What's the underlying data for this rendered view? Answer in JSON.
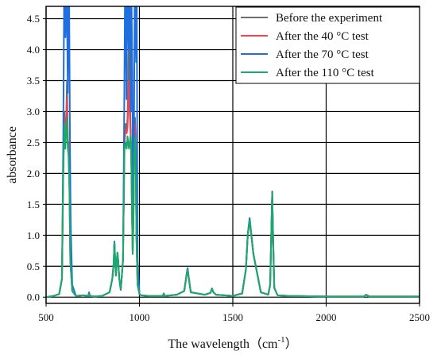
{
  "chart_data": {
    "type": "line",
    "xlabel": "The wavelength（cm",
    "xlabel_sup": "-1",
    "xlabel_close": "）",
    "ylabel": "absorbance",
    "xlim": [
      500,
      2500
    ],
    "ylim": [
      -0.1,
      4.7
    ],
    "xticks": [
      500,
      1000,
      1500,
      2000,
      2500
    ],
    "yticks": [
      0.0,
      0.5,
      1.0,
      1.5,
      2.0,
      2.5,
      3.0,
      3.5,
      4.0,
      4.5
    ],
    "xtick_labels": [
      "500",
      "1000",
      "1500",
      "2000",
      "2500"
    ],
    "ytick_labels": [
      "0.0",
      "0.5",
      "1.0",
      "1.5",
      "2.0",
      "2.5",
      "3.0",
      "3.5",
      "4.0",
      "4.5"
    ],
    "grid": true,
    "legend_position": "top-right",
    "series": [
      {
        "name": "Before the experiment",
        "color": "#6e6e6e",
        "x": [
          500,
          540,
          570,
          585,
          592,
          598,
          603,
          608,
          612,
          616,
          620,
          625,
          630,
          640,
          660,
          700,
          725,
          730,
          735,
          760,
          800,
          840,
          855,
          862,
          866,
          870,
          874,
          878,
          882,
          886,
          892,
          900,
          912,
          920,
          926,
          932,
          936,
          940,
          944,
          948,
          952,
          956,
          960,
          964,
          968,
          972,
          976,
          980,
          984,
          990,
          1000,
          1010,
          1050,
          1100,
          1125,
          1130,
          1135,
          1200,
          1240,
          1252,
          1258,
          1264,
          1275,
          1350,
          1380,
          1388,
          1396,
          1410,
          1500,
          1550,
          1570,
          1580,
          1590,
          1610,
          1650,
          1690,
          1700,
          1706,
          1711,
          1716,
          1722,
          1740,
          1800,
          2000,
          2200,
          2215,
          2230,
          2300,
          2500
        ],
        "y": [
          0.0,
          0.02,
          0.05,
          0.3,
          2.0,
          3.0,
          2.6,
          2.9,
          3.5,
          2.6,
          2.4,
          1.8,
          0.6,
          0.1,
          0.02,
          0.03,
          0.02,
          0.06,
          0.02,
          0.01,
          0.02,
          0.08,
          0.3,
          0.55,
          0.9,
          0.6,
          0.35,
          0.55,
          0.72,
          0.6,
          0.3,
          0.12,
          0.6,
          2.5,
          2.8,
          2.7,
          2.9,
          3.6,
          4.3,
          3.5,
          2.8,
          2.3,
          1.4,
          0.7,
          1.3,
          2.4,
          2.9,
          2.4,
          1.0,
          0.2,
          0.05,
          0.03,
          0.02,
          0.02,
          0.02,
          0.06,
          0.02,
          0.04,
          0.1,
          0.35,
          0.47,
          0.32,
          0.08,
          0.04,
          0.07,
          0.14,
          0.08,
          0.04,
          0.02,
          0.06,
          0.45,
          1.0,
          1.27,
          0.7,
          0.08,
          0.04,
          0.2,
          1.0,
          1.7,
          0.9,
          0.15,
          0.03,
          0.02,
          0.01,
          0.01,
          0.04,
          0.01,
          0.01,
          0.01
        ]
      },
      {
        "name": "After the 40 °C test",
        "color": "#f0444f",
        "x": [
          500,
          540,
          570,
          585,
          592,
          598,
          603,
          608,
          612,
          616,
          620,
          625,
          630,
          640,
          660,
          700,
          725,
          730,
          735,
          760,
          800,
          840,
          855,
          862,
          866,
          870,
          874,
          878,
          882,
          886,
          892,
          900,
          912,
          920,
          926,
          932,
          936,
          940,
          944,
          948,
          952,
          956,
          960,
          964,
          968,
          972,
          976,
          980,
          984,
          990,
          1000,
          1010,
          1050,
          1100,
          1125,
          1130,
          1135,
          1200,
          1240,
          1252,
          1258,
          1264,
          1275,
          1350,
          1380,
          1388,
          1396,
          1410,
          1500,
          1550,
          1570,
          1580,
          1590,
          1610,
          1650,
          1690,
          1700,
          1706,
          1711,
          1716,
          1722,
          1740,
          1800,
          2000,
          2200,
          2215,
          2230,
          2300,
          2500
        ],
        "y": [
          0.0,
          0.02,
          0.05,
          0.3,
          2.0,
          2.9,
          2.5,
          2.8,
          3.2,
          2.6,
          2.4,
          1.8,
          0.6,
          0.1,
          0.02,
          0.03,
          0.02,
          0.06,
          0.02,
          0.01,
          0.02,
          0.08,
          0.3,
          0.55,
          0.9,
          0.6,
          0.35,
          0.55,
          0.72,
          0.6,
          0.3,
          0.12,
          0.6,
          2.5,
          2.7,
          2.65,
          2.75,
          3.1,
          3.5,
          3.0,
          2.7,
          2.3,
          1.4,
          0.7,
          1.3,
          2.4,
          2.8,
          2.4,
          1.0,
          0.2,
          0.05,
          0.03,
          0.02,
          0.02,
          0.02,
          0.06,
          0.02,
          0.04,
          0.1,
          0.35,
          0.46,
          0.32,
          0.08,
          0.04,
          0.07,
          0.13,
          0.08,
          0.04,
          0.02,
          0.06,
          0.45,
          1.0,
          1.25,
          0.7,
          0.08,
          0.04,
          0.2,
          1.0,
          1.69,
          0.9,
          0.15,
          0.03,
          0.02,
          0.01,
          0.01,
          0.04,
          0.01,
          0.01,
          0.01
        ]
      },
      {
        "name": "After the 70 °C test",
        "color": "#1f6fe0",
        "x": [
          500,
          540,
          570,
          585,
          592,
          596,
          600,
          604,
          608,
          612,
          616,
          620,
          624,
          628,
          632,
          640,
          660,
          700,
          725,
          730,
          735,
          760,
          800,
          840,
          855,
          862,
          866,
          870,
          874,
          878,
          882,
          886,
          892,
          900,
          912,
          918,
          922,
          926,
          930,
          934,
          938,
          942,
          946,
          950,
          954,
          958,
          962,
          966,
          970,
          974,
          978,
          982,
          986,
          990,
          1000,
          1010,
          1050,
          1100,
          1125,
          1130,
          1135,
          1200,
          1240,
          1252,
          1258,
          1264,
          1275,
          1350,
          1380,
          1388,
          1396,
          1410,
          1500,
          1550,
          1570,
          1580,
          1590,
          1610,
          1650,
          1690,
          1700,
          1706,
          1711,
          1716,
          1722,
          1740,
          1800,
          2000,
          2200,
          2215,
          2230,
          2300,
          2500
        ],
        "y": [
          0.0,
          0.02,
          0.05,
          0.3,
          2.5,
          4.7,
          4.7,
          4.2,
          4.7,
          4.7,
          3.3,
          4.7,
          4.7,
          2.4,
          1.2,
          0.2,
          0.02,
          0.03,
          0.02,
          0.08,
          0.02,
          0.01,
          0.02,
          0.08,
          0.3,
          0.55,
          0.9,
          0.6,
          0.35,
          0.55,
          0.72,
          0.6,
          0.3,
          0.12,
          0.6,
          2.8,
          4.7,
          4.7,
          3.2,
          4.7,
          4.7,
          4.0,
          4.7,
          4.7,
          3.0,
          4.7,
          3.6,
          1.0,
          2.0,
          4.7,
          4.7,
          3.8,
          4.7,
          0.6,
          0.05,
          0.03,
          0.02,
          0.02,
          0.02,
          0.06,
          0.02,
          0.04,
          0.1,
          0.36,
          0.47,
          0.32,
          0.08,
          0.04,
          0.07,
          0.14,
          0.08,
          0.04,
          0.02,
          0.06,
          0.45,
          1.02,
          1.28,
          0.7,
          0.08,
          0.04,
          0.2,
          1.0,
          1.71,
          0.9,
          0.15,
          0.03,
          0.02,
          0.01,
          0.01,
          0.04,
          0.01,
          0.01,
          0.01
        ]
      },
      {
        "name": "After the 110 °C test",
        "color": "#1aaa6a",
        "x": [
          500,
          540,
          570,
          585,
          592,
          598,
          603,
          608,
          612,
          616,
          620,
          625,
          630,
          640,
          660,
          700,
          725,
          730,
          735,
          760,
          800,
          840,
          855,
          862,
          866,
          870,
          874,
          878,
          882,
          886,
          892,
          900,
          912,
          920,
          926,
          932,
          936,
          940,
          944,
          948,
          952,
          956,
          960,
          964,
          968,
          972,
          976,
          980,
          984,
          990,
          1000,
          1010,
          1050,
          1100,
          1125,
          1130,
          1135,
          1200,
          1240,
          1252,
          1258,
          1264,
          1275,
          1350,
          1380,
          1388,
          1396,
          1410,
          1500,
          1550,
          1570,
          1580,
          1590,
          1610,
          1650,
          1690,
          1700,
          1706,
          1711,
          1716,
          1722,
          1740,
          1800,
          2000,
          2200,
          2215,
          2230,
          2300,
          2500
        ],
        "y": [
          0.0,
          0.02,
          0.05,
          0.3,
          2.0,
          2.8,
          2.4,
          2.7,
          2.9,
          2.4,
          2.3,
          1.7,
          0.6,
          0.1,
          0.02,
          0.03,
          0.02,
          0.05,
          0.02,
          0.01,
          0.02,
          0.08,
          0.3,
          0.55,
          0.88,
          0.6,
          0.35,
          0.55,
          0.72,
          0.6,
          0.3,
          0.12,
          0.6,
          2.4,
          2.5,
          2.4,
          2.6,
          2.5,
          2.4,
          2.5,
          2.6,
          2.3,
          1.4,
          0.7,
          1.3,
          2.3,
          2.6,
          2.3,
          1.0,
          0.2,
          0.05,
          0.03,
          0.02,
          0.02,
          0.02,
          0.06,
          0.02,
          0.04,
          0.1,
          0.35,
          0.45,
          0.32,
          0.08,
          0.04,
          0.07,
          0.13,
          0.08,
          0.04,
          0.02,
          0.06,
          0.45,
          1.0,
          1.24,
          0.7,
          0.08,
          0.04,
          0.2,
          1.0,
          1.68,
          0.9,
          0.15,
          0.03,
          0.02,
          0.01,
          0.01,
          0.04,
          0.01,
          0.01,
          0.01
        ]
      }
    ]
  }
}
